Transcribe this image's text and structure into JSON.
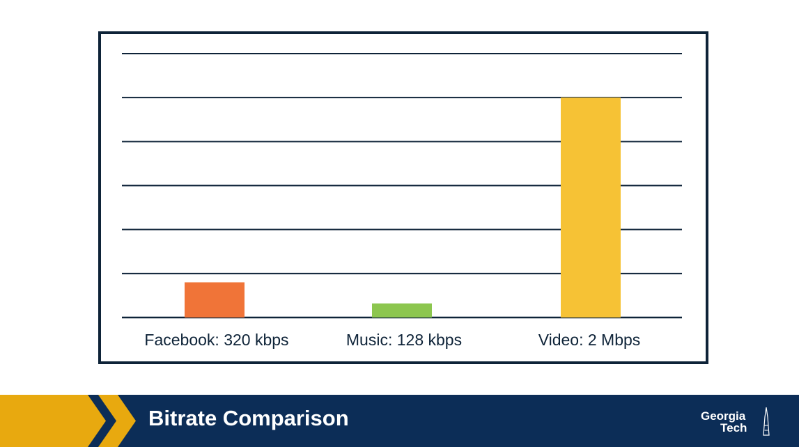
{
  "slide": {
    "title": "Bitrate Comparison"
  },
  "logo": {
    "line1": "Georgia",
    "line2": "Tech"
  },
  "colors": {
    "frame": "#0e2338",
    "footer": "#0c2d57",
    "chevron": "#e8a90f",
    "bar_facebook": "#f07438",
    "bar_music": "#8cc64f",
    "bar_video": "#f6c235"
  },
  "chart_data": {
    "type": "bar",
    "categories": [
      "Facebook: 320 kbps",
      "Music: 128 kbps",
      "Video: 2 Mbps"
    ],
    "values": [
      320,
      128,
      2000
    ],
    "value_unit": "kbps",
    "ylim": [
      0,
      2400
    ],
    "grid": true,
    "title": "",
    "xlabel": "",
    "ylabel": ""
  }
}
